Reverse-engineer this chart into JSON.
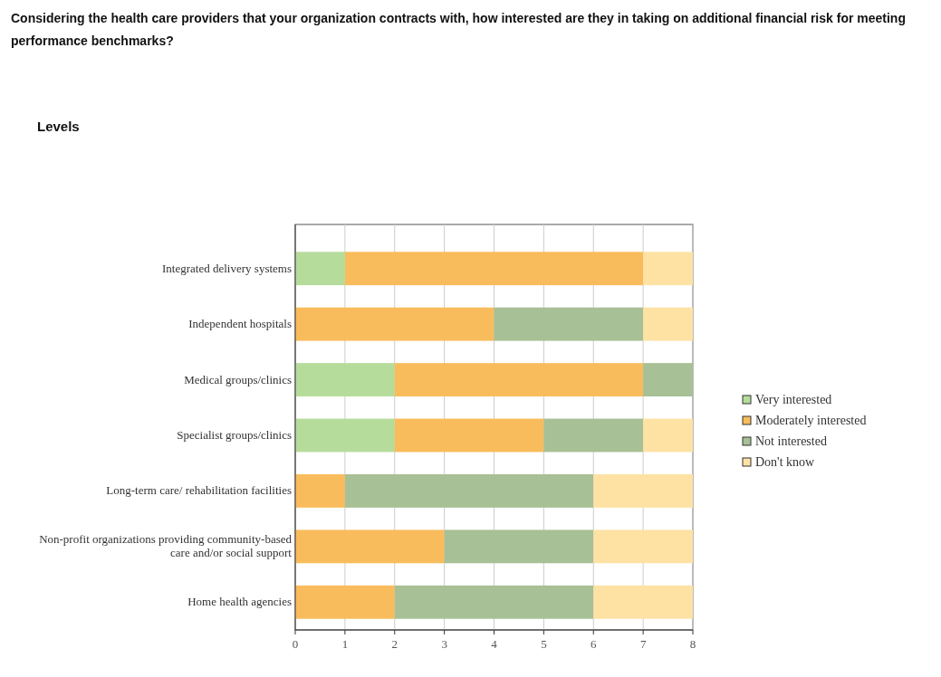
{
  "chart_data": {
    "type": "bar",
    "orientation": "horizontal",
    "stacked": true,
    "title": "Considering the health care providers that your organization contracts with, how interested are they in taking on additional financial risk for meeting performance benchmarks?",
    "subtitle": "Levels",
    "categories": [
      "Integrated delivery systems",
      "Independent hospitals",
      "Medical groups/clinics",
      "Specialist groups/clinics",
      "Long-term care/ rehabilitation facilities",
      "Non-profit organizations providing community-based care and/or social support",
      "Home health agencies"
    ],
    "series": [
      {
        "name": "Very interested",
        "color": "#b6dc9c",
        "values": [
          1,
          0,
          2,
          2,
          0,
          0,
          0
        ]
      },
      {
        "name": "Moderately interested",
        "color": "#f9bc5c",
        "values": [
          6,
          4,
          5,
          3,
          1,
          3,
          2
        ]
      },
      {
        "name": "Not interested",
        "color": "#a7c095",
        "values": [
          0,
          3,
          1,
          2,
          5,
          3,
          4
        ]
      },
      {
        "name": "Don't know",
        "color": "#fde2a4",
        "values": [
          1,
          1,
          0,
          1,
          2,
          2,
          2
        ]
      }
    ],
    "xlim": [
      0,
      8
    ],
    "xticks": [
      0,
      1,
      2,
      3,
      4,
      5,
      6,
      7,
      8
    ],
    "grid": "x",
    "legend": "right"
  }
}
